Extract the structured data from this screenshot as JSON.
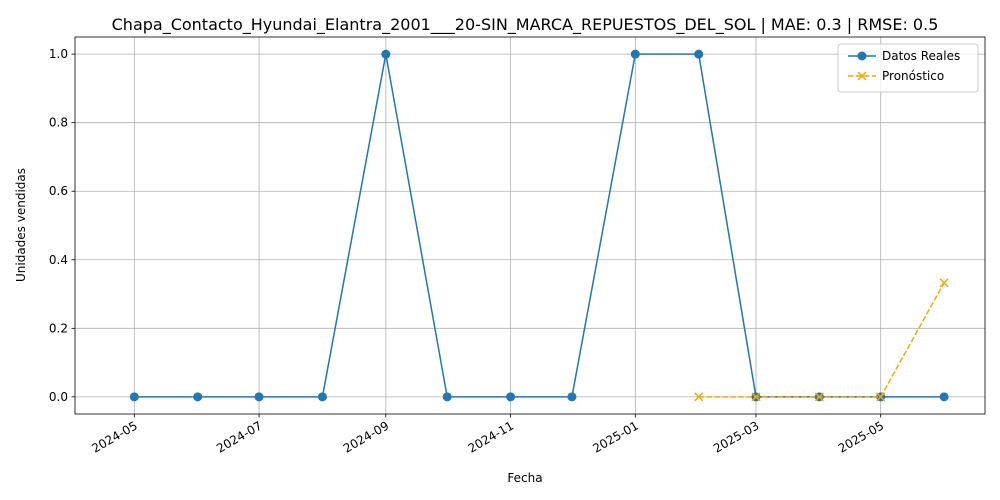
{
  "chart_data": {
    "type": "line",
    "title": "Chapa_Contacto_Hyundai_Elantra_2001___20-SIN_MARCA_REPUESTOS_DEL_SOL | MAE: 0.3 | RMSE: 0.5",
    "xlabel": "Fecha",
    "ylabel": "Unidades vendidas",
    "ylim": [
      -0.05,
      1.05
    ],
    "xlim": [
      "2024-04-02",
      "2025-06-21"
    ],
    "x_ticks": [
      "2024-05",
      "2024-07",
      "2024-09",
      "2024-11",
      "2025-01",
      "2025-03",
      "2025-05"
    ],
    "x_tick_dates": [
      "2024-05-01",
      "2024-07-01",
      "2024-09-01",
      "2024-11-01",
      "2025-01-01",
      "2025-03-01",
      "2025-05-01"
    ],
    "y_ticks": [
      "0.0",
      "0.2",
      "0.4",
      "0.6",
      "0.8",
      "1.0"
    ],
    "y_tick_values": [
      0,
      0.2,
      0.4,
      0.6,
      0.8,
      1.0
    ],
    "grid": true,
    "legend_position": "top-right",
    "series": [
      {
        "name": "Datos Reales",
        "color": "#1f77b4",
        "style": "solid",
        "marker": "circle",
        "x": [
          "2024-05-01",
          "2024-06-01",
          "2024-07-01",
          "2024-08-01",
          "2024-09-01",
          "2024-10-01",
          "2024-11-01",
          "2024-12-01",
          "2025-01-01",
          "2025-02-01",
          "2025-03-01",
          "2025-04-01",
          "2025-05-01",
          "2025-06-01"
        ],
        "values": [
          0,
          0,
          0,
          0,
          1,
          0,
          0,
          0,
          1,
          1,
          0,
          0,
          0,
          0
        ]
      },
      {
        "name": "Pronóstico",
        "color": "#ffa500",
        "style": "dashed",
        "marker": "x",
        "x": [
          "2025-02-01",
          "2025-03-01",
          "2025-04-01",
          "2025-05-01",
          "2025-06-01"
        ],
        "values": [
          0,
          0,
          0,
          0,
          0.333
        ]
      }
    ]
  }
}
